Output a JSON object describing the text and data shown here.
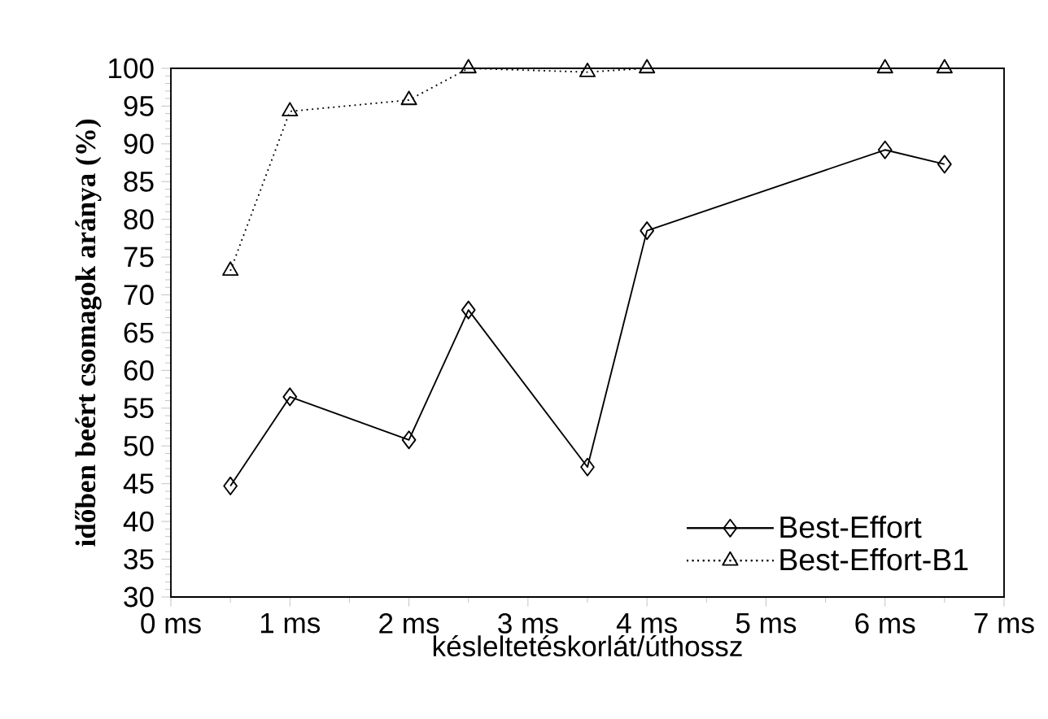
{
  "chart_data": {
    "type": "line",
    "xlabel": "késleltetéskorlát/úthossz",
    "ylabel": "időben beért csomagok aránya (%)",
    "x": [
      0.5,
      1,
      2,
      2.5,
      3.5,
      4,
      6,
      6.5
    ],
    "series": [
      {
        "name": "Best-Effort",
        "color": "#000000",
        "marker": "diamond",
        "line_style": "solid",
        "values": [
          44.7,
          56.5,
          50.8,
          68,
          47.2,
          78.5,
          89.2,
          87.3
        ]
      },
      {
        "name": "Best-Effort-B1",
        "color": "#000000",
        "marker": "triangle",
        "line_style": "dotted",
        "values": [
          73.2,
          94.3,
          95.8,
          100,
          99.5,
          100,
          100,
          100
        ]
      }
    ],
    "xlim": [
      0,
      7
    ],
    "xticks": [
      {
        "value": 0,
        "label": "0 ms"
      },
      {
        "value": 1,
        "label": "1 ms"
      },
      {
        "value": 2,
        "label": "2 ms"
      },
      {
        "value": 3,
        "label": "3 ms"
      },
      {
        "value": 4,
        "label": "4 ms"
      },
      {
        "value": 5,
        "label": "5 ms"
      },
      {
        "value": 6,
        "label": "6 ms"
      },
      {
        "value": 7,
        "label": "7 ms"
      }
    ],
    "ylim": [
      30,
      100
    ],
    "yticks": [
      30,
      35,
      40,
      45,
      50,
      55,
      60,
      65,
      70,
      75,
      80,
      85,
      90,
      95,
      100
    ],
    "grid": false,
    "legend": "bottom right"
  }
}
